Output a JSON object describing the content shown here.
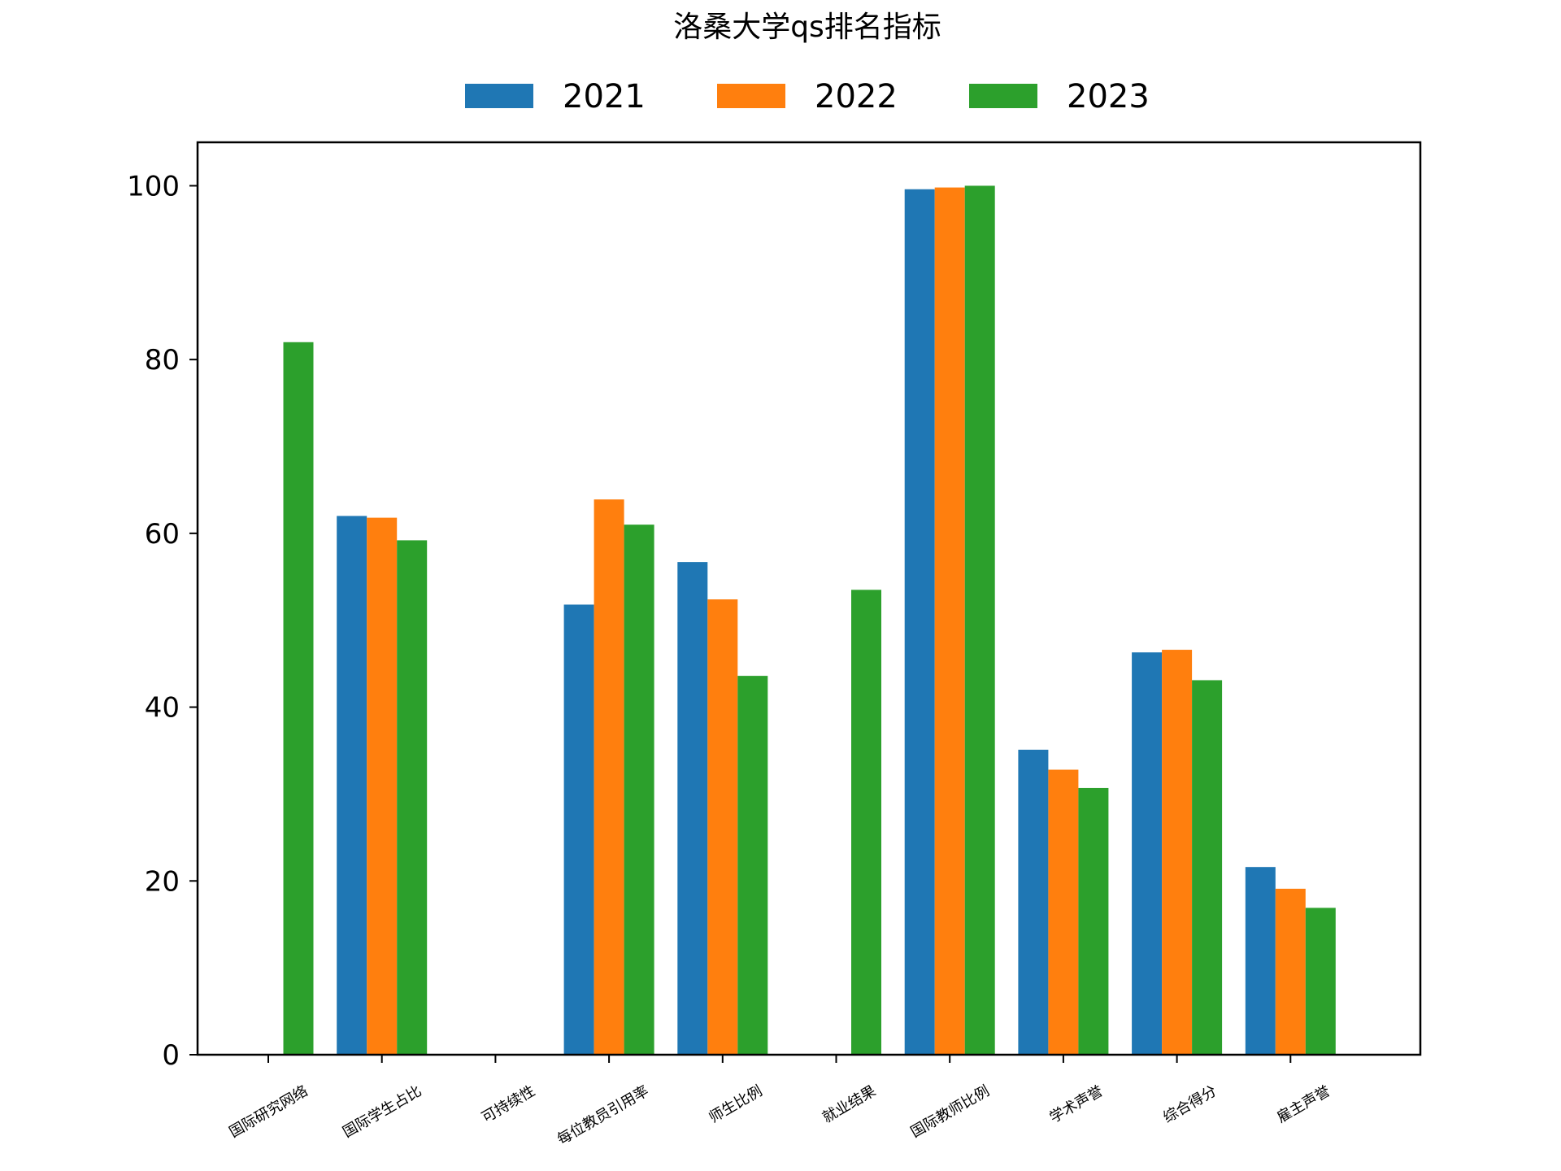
{
  "chart_data": {
    "type": "bar",
    "title": "洛桑大学qs排名指标",
    "xlabel": "",
    "ylabel": "",
    "ylim": [
      0,
      105
    ],
    "yticks": [
      0,
      20,
      40,
      60,
      80,
      100
    ],
    "grid": false,
    "legend_position": "top-center",
    "categories": [
      "国际研究网络",
      "国际学生占比",
      "可持续性",
      "每位教员引用率",
      "师生比例",
      "就业结果",
      "国际教师比例",
      "学术声誉",
      "综合得分",
      "雇主声誉"
    ],
    "series": [
      {
        "name": "2021",
        "color": "#1f77b4",
        "values": [
          null,
          62.0,
          null,
          51.8,
          56.7,
          null,
          99.6,
          35.1,
          46.3,
          21.6
        ]
      },
      {
        "name": "2022",
        "color": "#ff7f0e",
        "values": [
          null,
          61.8,
          null,
          63.9,
          52.4,
          null,
          99.8,
          32.8,
          46.6,
          19.1
        ]
      },
      {
        "name": "2023",
        "color": "#2ca02c",
        "values": [
          82.0,
          59.2,
          null,
          61.0,
          43.6,
          53.5,
          100.0,
          30.7,
          43.1,
          16.9
        ]
      }
    ]
  }
}
